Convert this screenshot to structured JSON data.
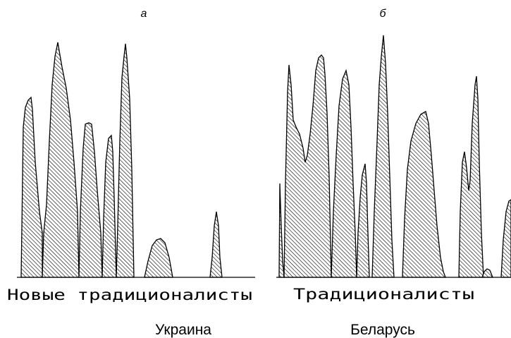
{
  "panels": [
    {
      "letter": "а",
      "caption": "Новые традиционалисты",
      "country": "Украина"
    },
    {
      "letter": "б",
      "caption": "Традиционалисты",
      "country": "Беларусь"
    }
  ],
  "colors": {
    "ink": "#000000",
    "fill_pattern": "diagonal-hatch",
    "background": "#ffffff"
  }
}
